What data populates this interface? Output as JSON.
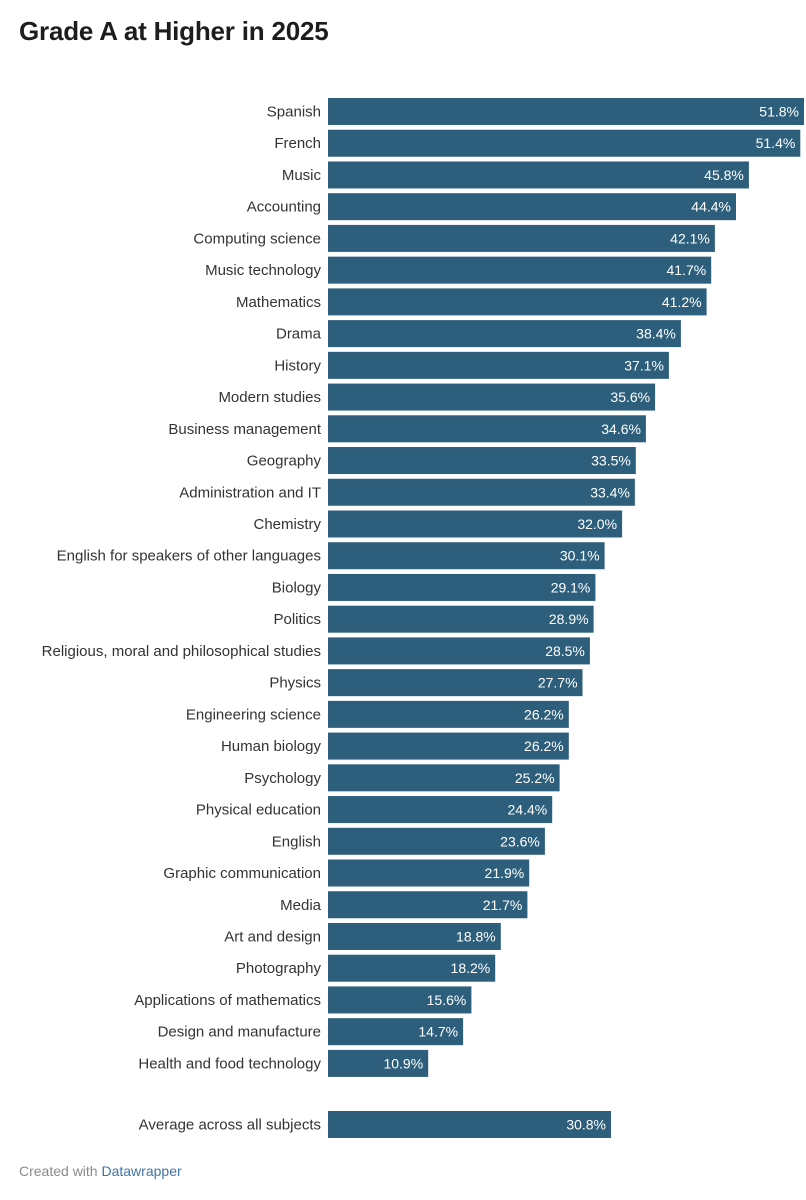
{
  "title": "Grade A at Higher in 2025",
  "footer": {
    "prefix": "Created with",
    "brand": "Datawrapper"
  },
  "colors": {
    "bar": "#2d5f7c",
    "label": "#333333",
    "value_text": "#ffffff"
  },
  "chart_data": {
    "type": "bar",
    "orientation": "horizontal",
    "value_suffix": "%",
    "xlim": [
      0,
      51.8
    ],
    "categories": [
      "Spanish",
      "French",
      "Music",
      "Accounting",
      "Computing science",
      "Music technology",
      "Mathematics",
      "Drama",
      "History",
      "Modern studies",
      "Business management",
      "Geography",
      "Administration and IT",
      "Chemistry",
      "English for speakers of other languages",
      "Biology",
      "Politics",
      "Religious, moral and philosophical studies",
      "Physics",
      "Engineering science",
      "Human biology",
      "Psychology",
      "Physical education",
      "English",
      "Graphic communication",
      "Media",
      "Art and design",
      "Photography",
      "Applications of mathematics",
      "Design and manufacture",
      "Health and food technology"
    ],
    "values": [
      51.8,
      51.4,
      45.8,
      44.4,
      42.1,
      41.7,
      41.2,
      38.4,
      37.1,
      35.6,
      34.6,
      33.5,
      33.4,
      32.0,
      30.1,
      29.1,
      28.9,
      28.5,
      27.7,
      26.2,
      26.2,
      25.2,
      24.4,
      23.6,
      21.9,
      21.7,
      18.8,
      18.2,
      15.6,
      14.7,
      10.9
    ],
    "labels": [
      "51.8%",
      "51.4%",
      "45.8%",
      "44.4%",
      "42.1%",
      "41.7%",
      "41.2%",
      "38.4%",
      "37.1%",
      "35.6%",
      "34.6%",
      "33.5%",
      "33.4%",
      "32.0%",
      "30.1%",
      "29.1%",
      "28.9%",
      "28.5%",
      "27.7%",
      "26.2%",
      "26.2%",
      "25.2%",
      "24.4%",
      "23.6%",
      "21.9%",
      "21.7%",
      "18.8%",
      "18.2%",
      "15.6%",
      "14.7%",
      "10.9%"
    ],
    "average": {
      "category": "Average across all subjects",
      "value": 30.8,
      "label": "30.8%"
    }
  }
}
